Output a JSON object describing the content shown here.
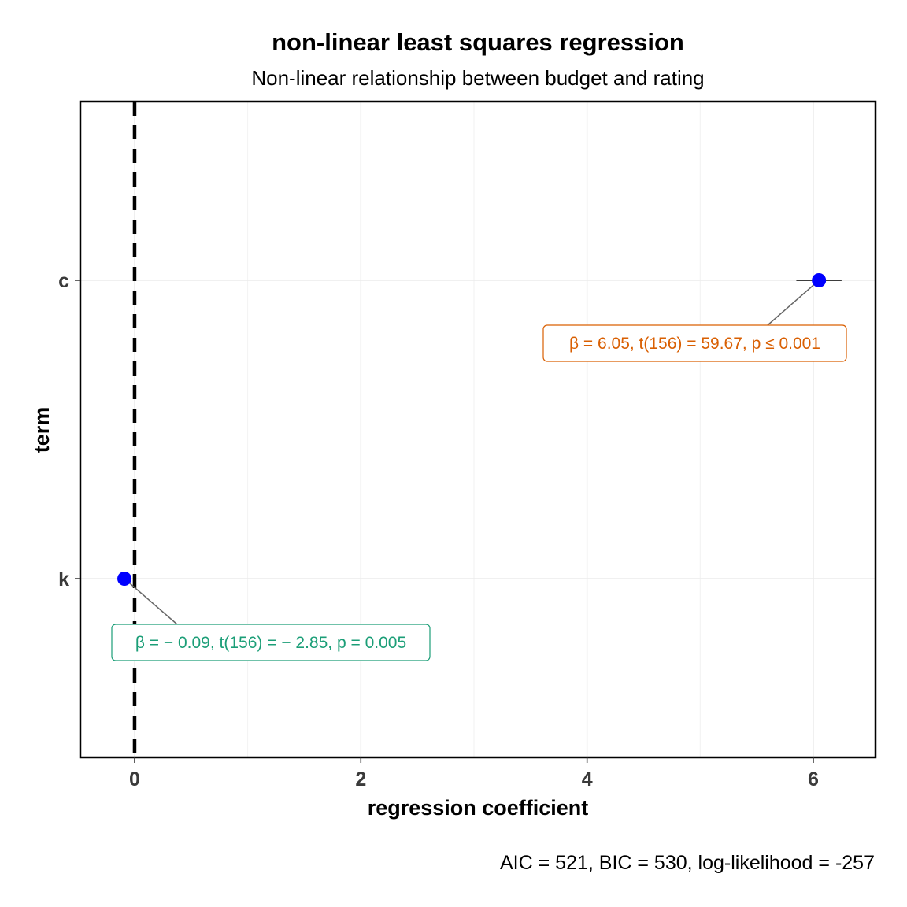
{
  "chart_data": {
    "type": "scatter",
    "title": "non-linear least squares regression",
    "subtitle": "Non-linear relationship between budget and rating",
    "xlabel": "regression coefficient",
    "ylabel": "term",
    "caption": "AIC = 521, BIC = 530, log-likelihood = -257",
    "xlim": [
      -0.48,
      6.55
    ],
    "x_ticks": [
      0,
      2,
      4,
      6
    ],
    "x_tick_labels": [
      "0",
      "2",
      "4",
      "6"
    ],
    "y_categories": [
      "k",
      "c"
    ],
    "reference_line": {
      "x": 0,
      "style": "dashed"
    },
    "grid": true,
    "point_color": "#0000ff",
    "terms": [
      {
        "term": "c",
        "estimate": 6.05,
        "conf_low": 5.85,
        "conf_high": 6.25,
        "label": "β = 6.05,  t(156) = 59.67,  p ≤ 0.001",
        "label_color": "#d95f02"
      },
      {
        "term": "k",
        "estimate": -0.09,
        "conf_low": -0.15,
        "conf_high": -0.03,
        "label": "β = − 0.09,  t(156) = − 2.85,  p = 0.005",
        "label_color": "#1b9e77"
      }
    ]
  }
}
